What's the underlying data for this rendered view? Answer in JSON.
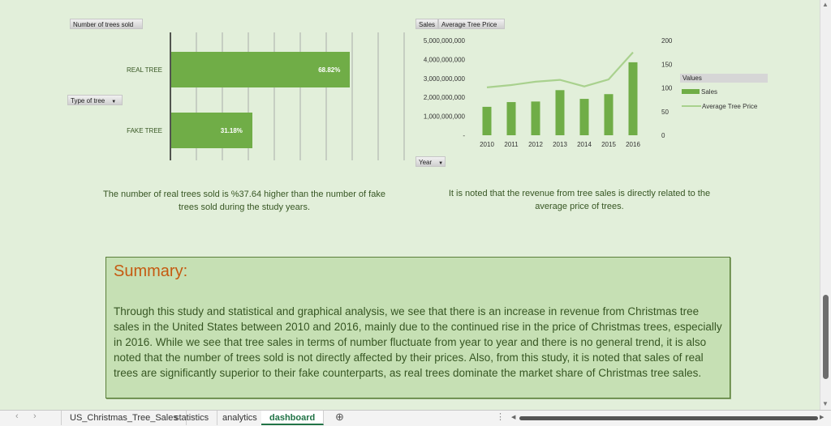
{
  "left_chart": {
    "value_field": "Number of trees sold",
    "row_field": "Type of tree",
    "chart_data": {
      "type": "bar",
      "categories": [
        "REAL TREE",
        "FAKE TREE"
      ],
      "values": [
        68.82,
        31.18
      ],
      "data_labels": [
        "68.82%",
        "31.18%"
      ],
      "xlim": [
        0,
        100
      ],
      "grid": true
    }
  },
  "right_chart": {
    "series_field": "Sales",
    "series2_field": "Average Tree Price",
    "axis_field": "Year",
    "legend_title": "Values",
    "chart_data": {
      "type": "bar",
      "x": [
        "2010",
        "2011",
        "2012",
        "2013",
        "2014",
        "2015",
        "2016"
      ],
      "series": [
        {
          "name": "Sales",
          "type": "bar",
          "axis": "left",
          "values": [
            1500000000,
            1750000000,
            1780000000,
            2380000000,
            1920000000,
            2170000000,
            3850000000
          ]
        },
        {
          "name": "Average Tree Price",
          "type": "line",
          "axis": "right",
          "values": [
            101,
            106,
            113,
            117,
            103,
            118,
            175
          ]
        }
      ],
      "y_ticks": [
        "-",
        "1,000,000,000",
        "2,000,000,000",
        "3,000,000,000",
        "4,000,000,000",
        "5,000,000,000"
      ],
      "ylim": [
        0,
        5000000000
      ],
      "y2_ticks": [
        "0",
        "50",
        "100",
        "150",
        "200"
      ],
      "y2lim": [
        0,
        200
      ],
      "legend_position": "right",
      "colors": {
        "bar": "#70ad47",
        "line": "#a9d18e"
      }
    }
  },
  "notes": {
    "left": "The number of real trees sold is %37.64 higher than the number of fake trees sold during the study years.",
    "right": "It is noted that the revenue from tree sales is directly related to the average price of trees."
  },
  "summary": {
    "title": "Summary:",
    "body": "Through this study and statistical and graphical analysis, we see that there is an increase in revenue from Christmas tree sales in the United States between 2010 and 2016, mainly due to the continued rise in the price of Christmas trees, especially in 2016. While we see that tree sales in terms of number fluctuate from year to year and there is no general trend, it is also noted that the number of trees sold is not directly affected by their prices. Also, from this study, it is noted that sales of real trees are significantly superior to their fake counterparts, as real trees dominate the market share of Christmas tree sales."
  },
  "tabs": {
    "items": [
      "US_Christmas_Tree_Sales",
      "statistics",
      "analytics",
      "dashboard"
    ],
    "active": "dashboard",
    "add_symbol": "⊕",
    "nav_prev": "‹",
    "nav_next": "›",
    "more": "⋮"
  },
  "colors": {
    "background": "#e2efda",
    "accent": "#70ad47",
    "title": "#c55a11"
  }
}
